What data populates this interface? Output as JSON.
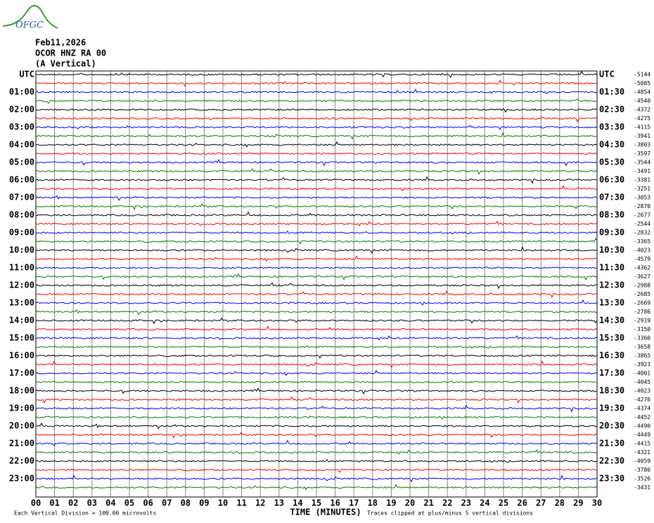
{
  "chart_data": {
    "type": "helicorder",
    "logo": "OFGC",
    "title": [
      "Feb11,2026",
      "OCOR HNZ RA 00",
      "(A Vertical)"
    ],
    "xlabel": "TIME (MINUTES)",
    "xlim": [
      0,
      30
    ],
    "xticks": [
      {
        "value": 0,
        "label": "00"
      },
      {
        "value": 1,
        "label": "01"
      },
      {
        "value": 2,
        "label": "02"
      },
      {
        "value": 3,
        "label": "03"
      },
      {
        "value": 4,
        "label": "04"
      },
      {
        "value": 5,
        "label": "05"
      },
      {
        "value": 6,
        "label": "06"
      },
      {
        "value": 7,
        "label": "07"
      },
      {
        "value": 8,
        "label": "08"
      },
      {
        "value": 9,
        "label": "09"
      },
      10,
      11,
      12,
      13,
      14,
      15,
      16,
      17,
      18,
      19,
      20,
      21,
      22,
      23,
      24,
      25,
      26,
      27,
      28,
      29,
      30
    ],
    "left_labels": [
      "UTC",
      "01:00",
      "02:00",
      "03:00",
      "04:00",
      "05:00",
      "06:00",
      "07:00",
      "08:00",
      "09:00",
      "10:00",
      "11:00",
      "12:00",
      "13:00",
      "14:00",
      "15:00",
      "16:00",
      "17:00",
      "18:00",
      "19:00",
      "20:00",
      "21:00",
      "22:00",
      "23:00"
    ],
    "right_labels": [
      "UTC",
      "01:30",
      "02:30",
      "03:30",
      "04:30",
      "05:30",
      "06:30",
      "07:30",
      "08:30",
      "09:30",
      "10:30",
      "11:30",
      "12:30",
      "13:30",
      "14:30",
      "15:30",
      "16:30",
      "17:30",
      "18:30",
      "19:30",
      "20:30",
      "21:30",
      "22:30",
      "23:30"
    ],
    "trace_offsets": [
      -5144,
      -5085,
      -4854,
      -4540,
      -4372,
      -4275,
      -4115,
      -3941,
      -3803,
      -3597,
      -3544,
      -3491,
      -3381,
      -3251,
      -3053,
      -2870,
      -2677,
      -2544,
      -2832,
      -3365,
      -4023,
      -4579,
      -4362,
      -3627,
      -2988,
      -2685,
      -2669,
      -2786,
      -2919,
      -3150,
      -3360,
      -3658,
      -3865,
      -3923,
      -4001,
      -4045,
      -4023,
      -4276,
      -4374,
      -4452,
      -4490,
      -4449,
      -4415,
      -4321,
      -4059,
      -3786,
      -3526,
      -3431
    ],
    "colors": [
      "#000000",
      "#ff0000",
      "#0000ff",
      "#008000"
    ],
    "grid": true,
    "notes": [
      "Each Vertical Division =  100.00 microvolts",
      "Traces clipped at plus/minus 5 vertical divisions"
    ]
  }
}
